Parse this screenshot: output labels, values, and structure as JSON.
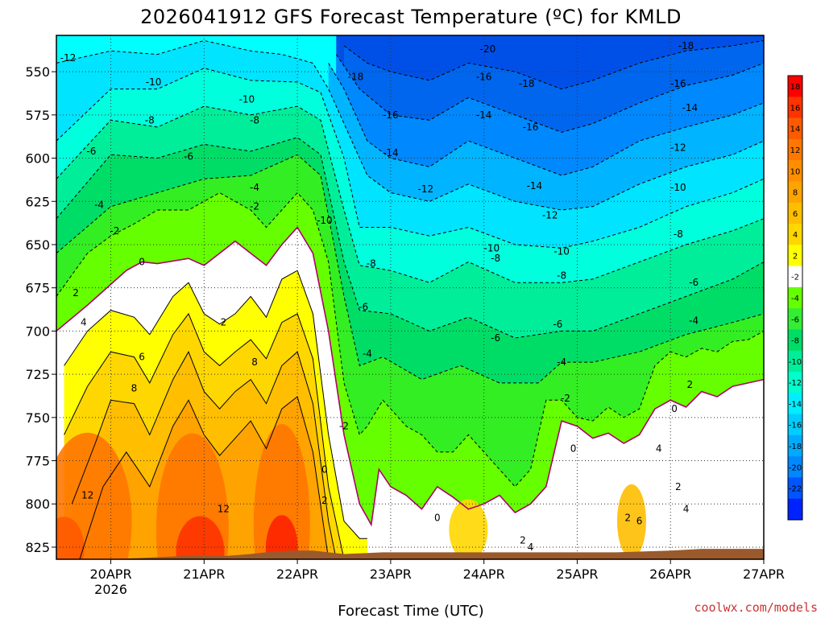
{
  "chart_data": {
    "type": "heatmap",
    "title": "2026041912 GFS Forecast Temperature (ºC) for KMLD",
    "xlabel": "Forecast Time (UTC)",
    "credit": "coolwx.com/models",
    "x_ticks": [
      "20APR",
      "21APR",
      "22APR",
      "23APR",
      "24APR",
      "25APR",
      "26APR",
      "27APR"
    ],
    "x_sub": "2026",
    "x_range_hours": [
      -14,
      168
    ],
    "y_ticks": [
      "550",
      "575",
      "600",
      "625",
      "650",
      "675",
      "700",
      "725",
      "750",
      "775",
      "800",
      "825"
    ],
    "y_range_hPa": [
      832,
      529
    ],
    "colorbar": {
      "levels": [
        "18",
        "16",
        "14",
        "12",
        "10",
        "8",
        "6",
        "4",
        "2",
        "-2",
        "-4",
        "-6",
        "-8",
        "-10",
        "-12",
        "-14",
        "-16",
        "-18",
        "-20",
        "-22"
      ],
      "colors": [
        "#ff0000",
        "#ff3300",
        "#ff5a00",
        "#ff7700",
        "#ff8f00",
        "#ffa300",
        "#ffbe00",
        "#ffd700",
        "#ffff00",
        "#ffffff",
        "#66ff00",
        "#33ee33",
        "#00dd66",
        "#00ee99",
        "#00ffcc",
        "#00eeff",
        "#00ccff",
        "#00aaff",
        "#0088ff",
        "#0055ff",
        "#0022ff"
      ]
    },
    "contours_hPa": {
      "0": {
        "hours": [
          -14,
          -6,
          0,
          4,
          8,
          12,
          20,
          24,
          28,
          32,
          36,
          40,
          44,
          48,
          52,
          56,
          60,
          64,
          67,
          69,
          72,
          76,
          80,
          84,
          88,
          92,
          96,
          100,
          104,
          108,
          112,
          116,
          120,
          124,
          128,
          132,
          136,
          140,
          144,
          148,
          152,
          156,
          160,
          164,
          168
        ],
        "p": [
          700,
          685,
          673,
          665,
          660,
          661,
          658,
          662,
          655,
          648,
          655,
          662,
          650,
          640,
          655,
          700,
          760,
          800,
          812,
          780,
          790,
          795,
          803,
          790,
          796,
          803,
          800,
          795,
          805,
          800,
          790,
          752,
          755,
          762,
          759,
          765,
          760,
          745,
          740,
          744,
          735,
          738,
          732,
          730,
          728
        ]
      },
      "-2": {
        "hours": [
          -14,
          -6,
          0,
          6,
          12,
          20,
          28,
          32,
          36,
          40,
          44,
          48,
          52,
          56,
          60,
          64,
          66,
          70,
          76,
          80,
          84,
          88,
          92,
          96,
          100,
          104,
          108,
          112,
          116,
          120,
          124,
          128,
          132,
          136,
          140,
          144,
          148,
          152,
          156,
          160,
          164,
          168
        ],
        "p": [
          680,
          655,
          645,
          638,
          630,
          630,
          620,
          625,
          630,
          640,
          630,
          620,
          630,
          660,
          730,
          760,
          755,
          740,
          755,
          760,
          770,
          770,
          760,
          770,
          780,
          790,
          780,
          740,
          740,
          750,
          752,
          744,
          750,
          745,
          720,
          712,
          715,
          710,
          712,
          706,
          705,
          700
        ]
      },
      "-4": {
        "hours": [
          -14,
          0,
          12,
          24,
          36,
          48,
          54,
          60,
          64,
          70,
          80,
          90,
          100,
          110,
          116,
          124,
          136,
          148,
          160,
          168
        ],
        "p": [
          655,
          628,
          620,
          612,
          610,
          598,
          610,
          680,
          720,
          715,
          728,
          720,
          730,
          730,
          718,
          718,
          712,
          702,
          695,
          690
        ]
      },
      "-6": {
        "hours": [
          -14,
          0,
          12,
          24,
          36,
          48,
          54,
          60,
          64,
          72,
          82,
          92,
          104,
          116,
          124,
          136,
          148,
          160,
          168
        ],
        "p": [
          635,
          598,
          600,
          592,
          596,
          588,
          598,
          660,
          688,
          690,
          700,
          692,
          704,
          700,
          700,
          690,
          680,
          670,
          660
        ]
      },
      "-8": {
        "hours": [
          -14,
          0,
          12,
          24,
          36,
          48,
          54,
          60,
          64,
          72,
          82,
          92,
          104,
          116,
          124,
          136,
          148,
          160,
          168
        ],
        "p": [
          612,
          578,
          582,
          570,
          575,
          570,
          578,
          630,
          662,
          665,
          672,
          660,
          672,
          672,
          670,
          660,
          650,
          642,
          635
        ]
      },
      "-10": {
        "hours": [
          -14,
          0,
          12,
          24,
          36,
          48,
          54,
          60,
          64,
          72,
          82,
          92,
          104,
          116,
          124,
          136,
          148,
          160,
          168
        ],
        "p": [
          590,
          560,
          560,
          548,
          555,
          556,
          562,
          600,
          640,
          640,
          645,
          640,
          650,
          652,
          648,
          640,
          628,
          620,
          612
        ]
      },
      "-12": {
        "hours": [
          -14,
          0,
          12,
          24,
          36,
          44,
          52,
          56,
          60,
          66,
          72,
          82,
          92,
          104,
          116,
          124,
          136,
          148,
          160,
          168
        ],
        "p": [
          545,
          538,
          540,
          532,
          538,
          540,
          545,
          560,
          580,
          610,
          620,
          625,
          615,
          625,
          630,
          628,
          615,
          605,
          598,
          590
        ]
      },
      "-14": {
        "hours": [
          56,
          60,
          66,
          72,
          82,
          92,
          104,
          116,
          124,
          136,
          148,
          160,
          168
        ],
        "p": [
          545,
          560,
          590,
          600,
          605,
          590,
          600,
          610,
          605,
          590,
          582,
          575,
          568
        ]
      },
      "-16": {
        "hours": [
          58,
          64,
          72,
          82,
          92,
          104,
          116,
          124,
          136,
          148,
          160,
          168
        ],
        "p": [
          540,
          560,
          575,
          578,
          565,
          575,
          585,
          580,
          568,
          558,
          552,
          545
        ]
      },
      "-18": {
        "hours": [
          60,
          66,
          72,
          82,
          92,
          104,
          116,
          124,
          136,
          148,
          160,
          168
        ],
        "p": [
          535,
          545,
          550,
          555,
          545,
          550,
          560,
          555,
          545,
          538,
          535,
          532
        ]
      },
      "2": {
        "hours": [
          -12,
          -6,
          0,
          6,
          10,
          16,
          20,
          24,
          28,
          32,
          36,
          40,
          44,
          48,
          52,
          56,
          60,
          64,
          66
        ],
        "p": [
          720,
          700,
          688,
          692,
          702,
          680,
          672,
          690,
          696,
          690,
          680,
          692,
          670,
          665,
          690,
          760,
          810,
          820,
          820
        ]
      },
      "4": {
        "hours": [
          -12,
          -6,
          0,
          6,
          10,
          16,
          20,
          24,
          28,
          32,
          36,
          40,
          44,
          48,
          52,
          56,
          60
        ],
        "p": [
          760,
          732,
          712,
          715,
          730,
          702,
          690,
          712,
          720,
          712,
          705,
          716,
          695,
          690,
          716,
          790,
          832
        ]
      },
      "6": {
        "hours": [
          -10,
          -4,
          0,
          6,
          10,
          16,
          20,
          24,
          28,
          32,
          36,
          40,
          44,
          48,
          52,
          56,
          58
        ],
        "p": [
          800,
          765,
          740,
          742,
          760,
          728,
          712,
          735,
          745,
          735,
          728,
          742,
          720,
          712,
          742,
          810,
          832
        ]
      },
      "8": {
        "hours": [
          -8,
          -2,
          4,
          10,
          16,
          20,
          24,
          28,
          32,
          36,
          40,
          44,
          48,
          52,
          56
        ],
        "p": [
          832,
          790,
          770,
          790,
          755,
          740,
          760,
          772,
          762,
          752,
          768,
          745,
          738,
          770,
          832
        ]
      }
    },
    "contour_labels": [
      {
        "text": "-12",
        "h": -11,
        "p": 542
      },
      {
        "text": "-10",
        "h": 11,
        "p": 556
      },
      {
        "text": "-8",
        "h": 10,
        "p": 578
      },
      {
        "text": "-6",
        "h": -5,
        "p": 596
      },
      {
        "text": "-6",
        "h": 20,
        "p": 599
      },
      {
        "text": "-10",
        "h": 35,
        "p": 566
      },
      {
        "text": "-8",
        "h": 37,
        "p": 578
      },
      {
        "text": "-4",
        "h": 37,
        "p": 617
      },
      {
        "text": "-4",
        "h": -3,
        "p": 627
      },
      {
        "text": "-2",
        "h": 1,
        "p": 642
      },
      {
        "text": "-2",
        "h": 37,
        "p": 628
      },
      {
        "text": "0",
        "h": 8,
        "p": 660
      },
      {
        "text": "2",
        "h": -9,
        "p": 678
      },
      {
        "text": "4",
        "h": -7,
        "p": 695
      },
      {
        "text": "6",
        "h": 8,
        "p": 715
      },
      {
        "text": "8",
        "h": 6,
        "p": 733
      },
      {
        "text": "12",
        "h": -6,
        "p": 795
      },
      {
        "text": "12",
        "h": 29,
        "p": 803
      },
      {
        "text": "2",
        "h": 29,
        "p": 695
      },
      {
        "text": "8",
        "h": 37,
        "p": 718
      },
      {
        "text": "-18",
        "h": 63,
        "p": 553
      },
      {
        "text": "-16",
        "h": 72,
        "p": 575
      },
      {
        "text": "-14",
        "h": 72,
        "p": 597
      },
      {
        "text": "-12",
        "h": 81,
        "p": 618
      },
      {
        "text": "-10",
        "h": 55,
        "p": 636
      },
      {
        "text": "-8",
        "h": 67,
        "p": 661
      },
      {
        "text": "-6",
        "h": 65,
        "p": 686
      },
      {
        "text": "-4",
        "h": 66,
        "p": 713
      },
      {
        "text": "-2",
        "h": 60,
        "p": 755
      },
      {
        "text": "0",
        "h": 55,
        "p": 780
      },
      {
        "text": "2",
        "h": 55,
        "p": 798
      },
      {
        "text": "-20",
        "h": 97,
        "p": 537
      },
      {
        "text": "-16",
        "h": 96,
        "p": 553
      },
      {
        "text": "-14",
        "h": 96,
        "p": 575
      },
      {
        "text": "-18",
        "h": 107,
        "p": 557
      },
      {
        "text": "-16",
        "h": 108,
        "p": 582
      },
      {
        "text": "-14",
        "h": 109,
        "p": 616
      },
      {
        "text": "-12",
        "h": 113,
        "p": 633
      },
      {
        "text": "-10",
        "h": 98,
        "p": 652
      },
      {
        "text": "-8",
        "h": 99,
        "p": 658
      },
      {
        "text": "-6",
        "h": 99,
        "p": 704
      },
      {
        "text": "-10",
        "h": 116,
        "p": 654
      },
      {
        "text": "-8",
        "h": 116,
        "p": 668
      },
      {
        "text": "-6",
        "h": 115,
        "p": 696
      },
      {
        "text": "-4",
        "h": 116,
        "p": 718
      },
      {
        "text": "-2",
        "h": 117,
        "p": 739
      },
      {
        "text": "0",
        "h": 119,
        "p": 768
      },
      {
        "text": "0",
        "h": 84,
        "p": 808
      },
      {
        "text": "2",
        "h": 106,
        "p": 821
      },
      {
        "text": "4",
        "h": 108,
        "p": 825
      },
      {
        "text": "2",
        "h": 133,
        "p": 808
      },
      {
        "text": "6",
        "h": 136,
        "p": 810
      },
      {
        "text": "4",
        "h": 141,
        "p": 768
      },
      {
        "text": "2",
        "h": 146,
        "p": 790
      },
      {
        "text": "0",
        "h": 145,
        "p": 745
      },
      {
        "text": "2",
        "h": 149,
        "p": 731
      },
      {
        "text": "4",
        "h": 148,
        "p": 803
      },
      {
        "text": "-4",
        "h": 150,
        "p": 694
      },
      {
        "text": "-6",
        "h": 150,
        "p": 672
      },
      {
        "text": "-8",
        "h": 146,
        "p": 644
      },
      {
        "text": "-10",
        "h": 146,
        "p": 617
      },
      {
        "text": "-12",
        "h": 146,
        "p": 594
      },
      {
        "text": "-14",
        "h": 149,
        "p": 571
      },
      {
        "text": "-16",
        "h": 146,
        "p": 557
      },
      {
        "text": "-18",
        "h": 148,
        "p": 535
      }
    ]
  }
}
